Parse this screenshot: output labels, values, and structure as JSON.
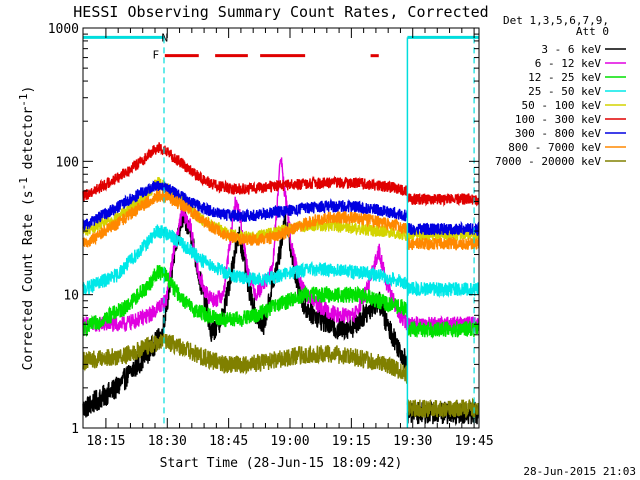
{
  "chart_data": {
    "type": "line",
    "title": "HESSI Observing Summary Count Rates, Corrected",
    "xlabel": "Start Time (28-Jun-15 18:09:42)",
    "ylabel_main": "Corrected Count Rate (s",
    "ylabel_sup1": "-1",
    "ylabel_mid": " detector",
    "ylabel_sup2": "-1",
    "ylabel_end": ")",
    "yscale": "log",
    "ylim": [
      1,
      1000
    ],
    "xlim_min": [
      -0.3,
      96.5
    ],
    "x_unit": "minutes after 18:09:42",
    "x_ticks": [
      {
        "label": "18:15",
        "t": 5.3
      },
      {
        "label": "18:30",
        "t": 20.3
      },
      {
        "label": "18:45",
        "t": 35.3
      },
      {
        "label": "19:00",
        "t": 50.3
      },
      {
        "label": "19:15",
        "t": 65.3
      },
      {
        "label": "19:30",
        "t": 80.3
      },
      {
        "label": "19:45",
        "t": 95.3
      }
    ],
    "y_ticks": [
      {
        "label": "1",
        "v": 1
      },
      {
        "label": "10",
        "v": 10
      },
      {
        "label": "100",
        "v": 100
      },
      {
        "label": "1000",
        "v": 1000
      }
    ],
    "legend_header": [
      "Det 1,3,5,6,7,9,",
      "Att 0"
    ],
    "legend_placement": "top-right outside",
    "date_stamp": "28-Jun-2015 21:03",
    "annotations": [
      {
        "label": "F",
        "t": 17.5
      },
      {
        "label": "N",
        "t": 19.7
      }
    ],
    "flags": {
      "dashed_lines_t": [
        19.5,
        95.3
      ],
      "night_end_t": 79.0,
      "night_line_value": 850,
      "flare_value": 620,
      "flare_segments": [
        [
          19.7,
          28.0
        ],
        [
          32.0,
          40.0
        ],
        [
          43.0,
          54.0
        ],
        [
          70.0,
          72.0
        ]
      ],
      "night_color": "#00dddd",
      "flare_color": "#e00000"
    },
    "data_gap": [
      19.5,
      79.0
    ],
    "series": [
      {
        "name": "3 - 6 keV",
        "color": "#000000",
        "points": [
          [
            0,
            1.4
          ],
          [
            8,
            2.0
          ],
          [
            15,
            3.5
          ],
          [
            19,
            5
          ],
          [
            22,
            20
          ],
          [
            24,
            38
          ],
          [
            26,
            30
          ],
          [
            28,
            14
          ],
          [
            30,
            8
          ],
          [
            31,
            5
          ],
          [
            34,
            7
          ],
          [
            37,
            22
          ],
          [
            38,
            28
          ],
          [
            40,
            12
          ],
          [
            42,
            7
          ],
          [
            44,
            6
          ],
          [
            48,
            22
          ],
          [
            49,
            38
          ],
          [
            50,
            28
          ],
          [
            52,
            12
          ],
          [
            54,
            8
          ],
          [
            58,
            6.5
          ],
          [
            62,
            5.5
          ],
          [
            66,
            5.8
          ],
          [
            70,
            8
          ],
          [
            72,
            9
          ],
          [
            74,
            6
          ],
          [
            79,
            3
          ]
        ]
      },
      {
        "name": "6 - 12 keV",
        "color": "#e000e0",
        "points": [
          [
            0,
            6
          ],
          [
            10,
            6
          ],
          [
            16,
            7
          ],
          [
            20,
            9
          ],
          [
            22,
            22
          ],
          [
            24,
            42
          ],
          [
            26,
            32
          ],
          [
            28,
            14
          ],
          [
            30,
            10
          ],
          [
            32,
            9
          ],
          [
            34,
            10
          ],
          [
            36,
            30
          ],
          [
            37,
            50
          ],
          [
            38,
            40
          ],
          [
            40,
            15
          ],
          [
            42,
            10
          ],
          [
            46,
            15
          ],
          [
            48,
            110
          ],
          [
            49,
            60
          ],
          [
            51,
            20
          ],
          [
            54,
            10
          ],
          [
            58,
            8
          ],
          [
            62,
            7
          ],
          [
            66,
            7
          ],
          [
            68,
            9
          ],
          [
            70,
            13
          ],
          [
            72,
            22
          ],
          [
            74,
            12
          ],
          [
            77,
            7
          ],
          [
            79,
            6
          ]
        ]
      },
      {
        "name": "12 - 25 keV",
        "color": "#00e000",
        "points": [
          [
            0,
            5.5
          ],
          [
            10,
            8
          ],
          [
            16,
            12
          ],
          [
            18,
            15
          ],
          [
            20,
            14
          ],
          [
            22,
            11
          ],
          [
            26,
            8
          ],
          [
            30,
            7
          ],
          [
            34,
            6.5
          ],
          [
            38,
            6.5
          ],
          [
            42,
            7
          ],
          [
            46,
            8
          ],
          [
            50,
            9
          ],
          [
            54,
            10
          ],
          [
            58,
            10
          ],
          [
            62,
            10
          ],
          [
            66,
            10
          ],
          [
            70,
            9.5
          ],
          [
            74,
            8.5
          ],
          [
            78,
            8
          ],
          [
            79,
            7.5
          ]
        ]
      },
      {
        "name": "25 - 50 keV",
        "color": "#00e8e8",
        "points": [
          [
            0,
            11
          ],
          [
            8,
            14
          ],
          [
            14,
            22
          ],
          [
            18,
            30
          ],
          [
            20,
            29
          ],
          [
            24,
            24
          ],
          [
            28,
            19
          ],
          [
            32,
            16
          ],
          [
            36,
            14
          ],
          [
            40,
            13
          ],
          [
            44,
            13
          ],
          [
            48,
            14
          ],
          [
            52,
            15
          ],
          [
            56,
            15.5
          ],
          [
            60,
            15.5
          ],
          [
            64,
            15
          ],
          [
            68,
            14.5
          ],
          [
            72,
            14
          ],
          [
            76,
            13
          ],
          [
            79,
            12
          ]
        ]
      },
      {
        "name": "50 - 100 keV",
        "color": "#d4d400",
        "points": [
          [
            0,
            30
          ],
          [
            8,
            38
          ],
          [
            14,
            52
          ],
          [
            18,
            70
          ],
          [
            20,
            64
          ],
          [
            24,
            50
          ],
          [
            28,
            38
          ],
          [
            32,
            32
          ],
          [
            36,
            28
          ],
          [
            40,
            27
          ],
          [
            44,
            28
          ],
          [
            48,
            30
          ],
          [
            52,
            32
          ],
          [
            56,
            33
          ],
          [
            60,
            33
          ],
          [
            64,
            32
          ],
          [
            68,
            31
          ],
          [
            72,
            30
          ],
          [
            76,
            29
          ],
          [
            79,
            28
          ]
        ]
      },
      {
        "name": "100 - 300 keV",
        "color": "#e00000",
        "points": [
          [
            0,
            55
          ],
          [
            8,
            75
          ],
          [
            14,
            100
          ],
          [
            18,
            128
          ],
          [
            20,
            118
          ],
          [
            24,
            96
          ],
          [
            28,
            76
          ],
          [
            32,
            66
          ],
          [
            36,
            62
          ],
          [
            40,
            62
          ],
          [
            44,
            64
          ],
          [
            48,
            66
          ],
          [
            52,
            67
          ],
          [
            56,
            68
          ],
          [
            60,
            69
          ],
          [
            64,
            69
          ],
          [
            68,
            68
          ],
          [
            72,
            66
          ],
          [
            76,
            63
          ],
          [
            79,
            60
          ]
        ]
      },
      {
        "name": "300 - 800 keV",
        "color": "#0000e0",
        "points": [
          [
            0,
            33
          ],
          [
            8,
            45
          ],
          [
            14,
            58
          ],
          [
            18,
            66
          ],
          [
            20,
            63
          ],
          [
            24,
            54
          ],
          [
            28,
            46
          ],
          [
            32,
            41
          ],
          [
            36,
            39
          ],
          [
            40,
            39
          ],
          [
            44,
            40
          ],
          [
            48,
            42
          ],
          [
            52,
            44
          ],
          [
            56,
            45
          ],
          [
            60,
            46
          ],
          [
            64,
            46
          ],
          [
            68,
            45
          ],
          [
            72,
            43
          ],
          [
            76,
            41
          ],
          [
            79,
            39
          ]
        ]
      },
      {
        "name": "800 - 7000 keV",
        "color": "#ff8800",
        "points": [
          [
            0,
            24
          ],
          [
            8,
            34
          ],
          [
            14,
            46
          ],
          [
            18,
            55
          ],
          [
            20,
            54
          ],
          [
            24,
            47
          ],
          [
            28,
            38
          ],
          [
            32,
            31
          ],
          [
            36,
            27
          ],
          [
            40,
            26
          ],
          [
            44,
            26
          ],
          [
            48,
            28
          ],
          [
            52,
            32
          ],
          [
            56,
            36
          ],
          [
            60,
            38
          ],
          [
            64,
            38
          ],
          [
            68,
            37
          ],
          [
            72,
            35
          ],
          [
            76,
            33
          ],
          [
            79,
            31
          ]
        ]
      },
      {
        "name": "7000 - 20000 keV",
        "color": "#808000",
        "points": [
          [
            0,
            3.2
          ],
          [
            10,
            3.5
          ],
          [
            16,
            4.2
          ],
          [
            20,
            4.5
          ],
          [
            24,
            4.0
          ],
          [
            28,
            3.5
          ],
          [
            34,
            3.0
          ],
          [
            40,
            3.0
          ],
          [
            46,
            3.2
          ],
          [
            52,
            3.5
          ],
          [
            58,
            3.6
          ],
          [
            64,
            3.5
          ],
          [
            70,
            3.2
          ],
          [
            76,
            2.8
          ],
          [
            79,
            2.5
          ]
        ]
      }
    ],
    "after_gap": [
      {
        "name": "3 - 6 keV",
        "v": 1.3
      },
      {
        "name": "6 - 12 keV",
        "v": 6.0
      },
      {
        "name": "12 - 25 keV",
        "v": 5.5
      },
      {
        "name": "25 - 50 keV",
        "v": 11
      },
      {
        "name": "50 - 100 keV",
        "v": 28
      },
      {
        "name": "100 - 300 keV",
        "v": 52
      },
      {
        "name": "300 - 800 keV",
        "v": 31
      },
      {
        "name": "800 - 7000 keV",
        "v": 24
      },
      {
        "name": "7000 - 20000 keV",
        "v": 1.4
      }
    ]
  }
}
